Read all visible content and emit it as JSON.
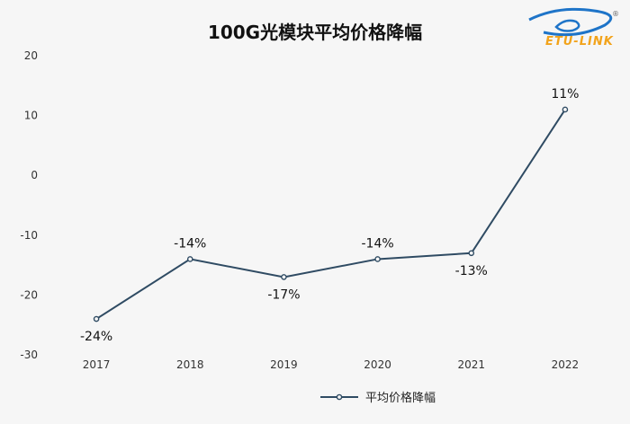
{
  "chart_data": {
    "type": "line",
    "title": "100G光模块平均价格降幅",
    "categories": [
      "2017",
      "2018",
      "2019",
      "2020",
      "2021",
      "2022"
    ],
    "series": [
      {
        "name": "平均价格降幅",
        "values": [
          -24,
          -14,
          -17,
          -14,
          -13,
          11
        ],
        "color": "#2f4b63"
      }
    ],
    "data_labels": [
      "-24%",
      "-14%",
      "-17%",
      "-14%",
      "-13%",
      "11%"
    ],
    "data_label_positions": [
      "below",
      "above",
      "below",
      "above",
      "below",
      "above"
    ],
    "yticks": [
      20,
      10,
      0,
      -10,
      -20,
      -30
    ],
    "ylim": [
      -30,
      20
    ],
    "grid": false,
    "legend": "bottom",
    "xlabel": "",
    "ylabel": ""
  },
  "logo": {
    "text": "ETU-LINK",
    "registered": "®",
    "color": "#f2a31b",
    "swoosh_color": "#1e74c8"
  }
}
